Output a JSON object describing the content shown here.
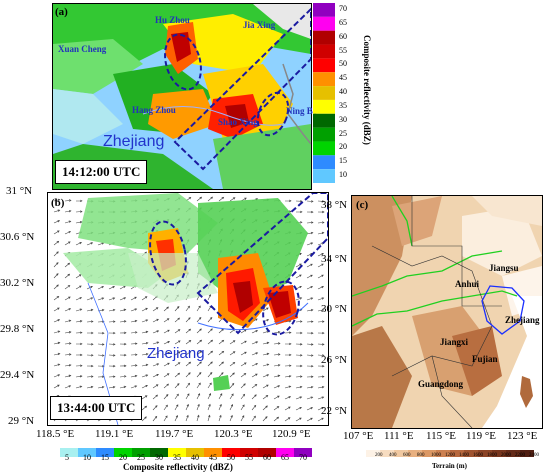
{
  "panel_a": {
    "label": "(a)",
    "time": "14:12:00 UTC",
    "region_label": "Zhejiang",
    "cities": [
      "Xuan Cheng",
      "Hu Zhou",
      "Jia Xing",
      "Hang Zhou",
      "Shao Xing",
      "Ning Bo"
    ],
    "colorbar_title": "Composite reflectivity (dBZ)",
    "colorbar_values": [
      "70",
      "65",
      "60",
      "55",
      "50",
      "45",
      "40",
      "35",
      "30",
      "25",
      "20",
      "15",
      "10"
    ]
  },
  "panel_b": {
    "label": "(b)",
    "time": "13:44:00 UTC",
    "region_label": "Zhejiang",
    "y_ticks": [
      "31 °N",
      "30.6 °N",
      "30.2 °N",
      "29.8 °N",
      "29.4 °N",
      "29 °N"
    ],
    "x_ticks": [
      "118.5 °E",
      "119.1 °E",
      "119.7 °E",
      "120.3 °E",
      "120.9 °E"
    ],
    "colorbar_values": [
      "5",
      "10",
      "15",
      "20",
      "25",
      "30",
      "35",
      "40",
      "45",
      "50",
      "55",
      "60",
      "65",
      "70"
    ],
    "colorbar_title": "Composite reflectivity (dBZ)"
  },
  "panel_c": {
    "label": "(c)",
    "y_ticks": [
      "38 °N",
      "34 °N",
      "30 °N",
      "26 °N",
      "22 °N"
    ],
    "x_ticks": [
      "107 °E",
      "111 °E",
      "115 °E",
      "119 °E",
      "123 °E"
    ],
    "provinces": [
      "Jiangsu",
      "Anhui",
      "Zhejiang",
      "Jiangxi",
      "Fujian",
      "Guangdong"
    ],
    "colorbar_values": [
      "200",
      "400",
      "600",
      "800",
      "1000",
      "1200",
      "1400",
      "1600",
      "1800",
      "2000",
      "2200",
      "2400"
    ],
    "colorbar_title": "Terrain (m)"
  },
  "colors": {
    "dbz": [
      "#a8f0f0",
      "#60c8ff",
      "#2e8bff",
      "#00d400",
      "#00a000",
      "#006800",
      "#ffff00",
      "#e6c000",
      "#ff9000",
      "#ff0000",
      "#d00000",
      "#b00000",
      "#ff00f0",
      "#9000c0"
    ],
    "terrain": [
      "#fdf2e6",
      "#f7dcc0",
      "#f0c8a0",
      "#e8b080",
      "#dc9864",
      "#cc8050",
      "#b8683e",
      "#a05430",
      "#8c4426",
      "#78361e",
      "#642a18",
      "#501e12"
    ]
  }
}
